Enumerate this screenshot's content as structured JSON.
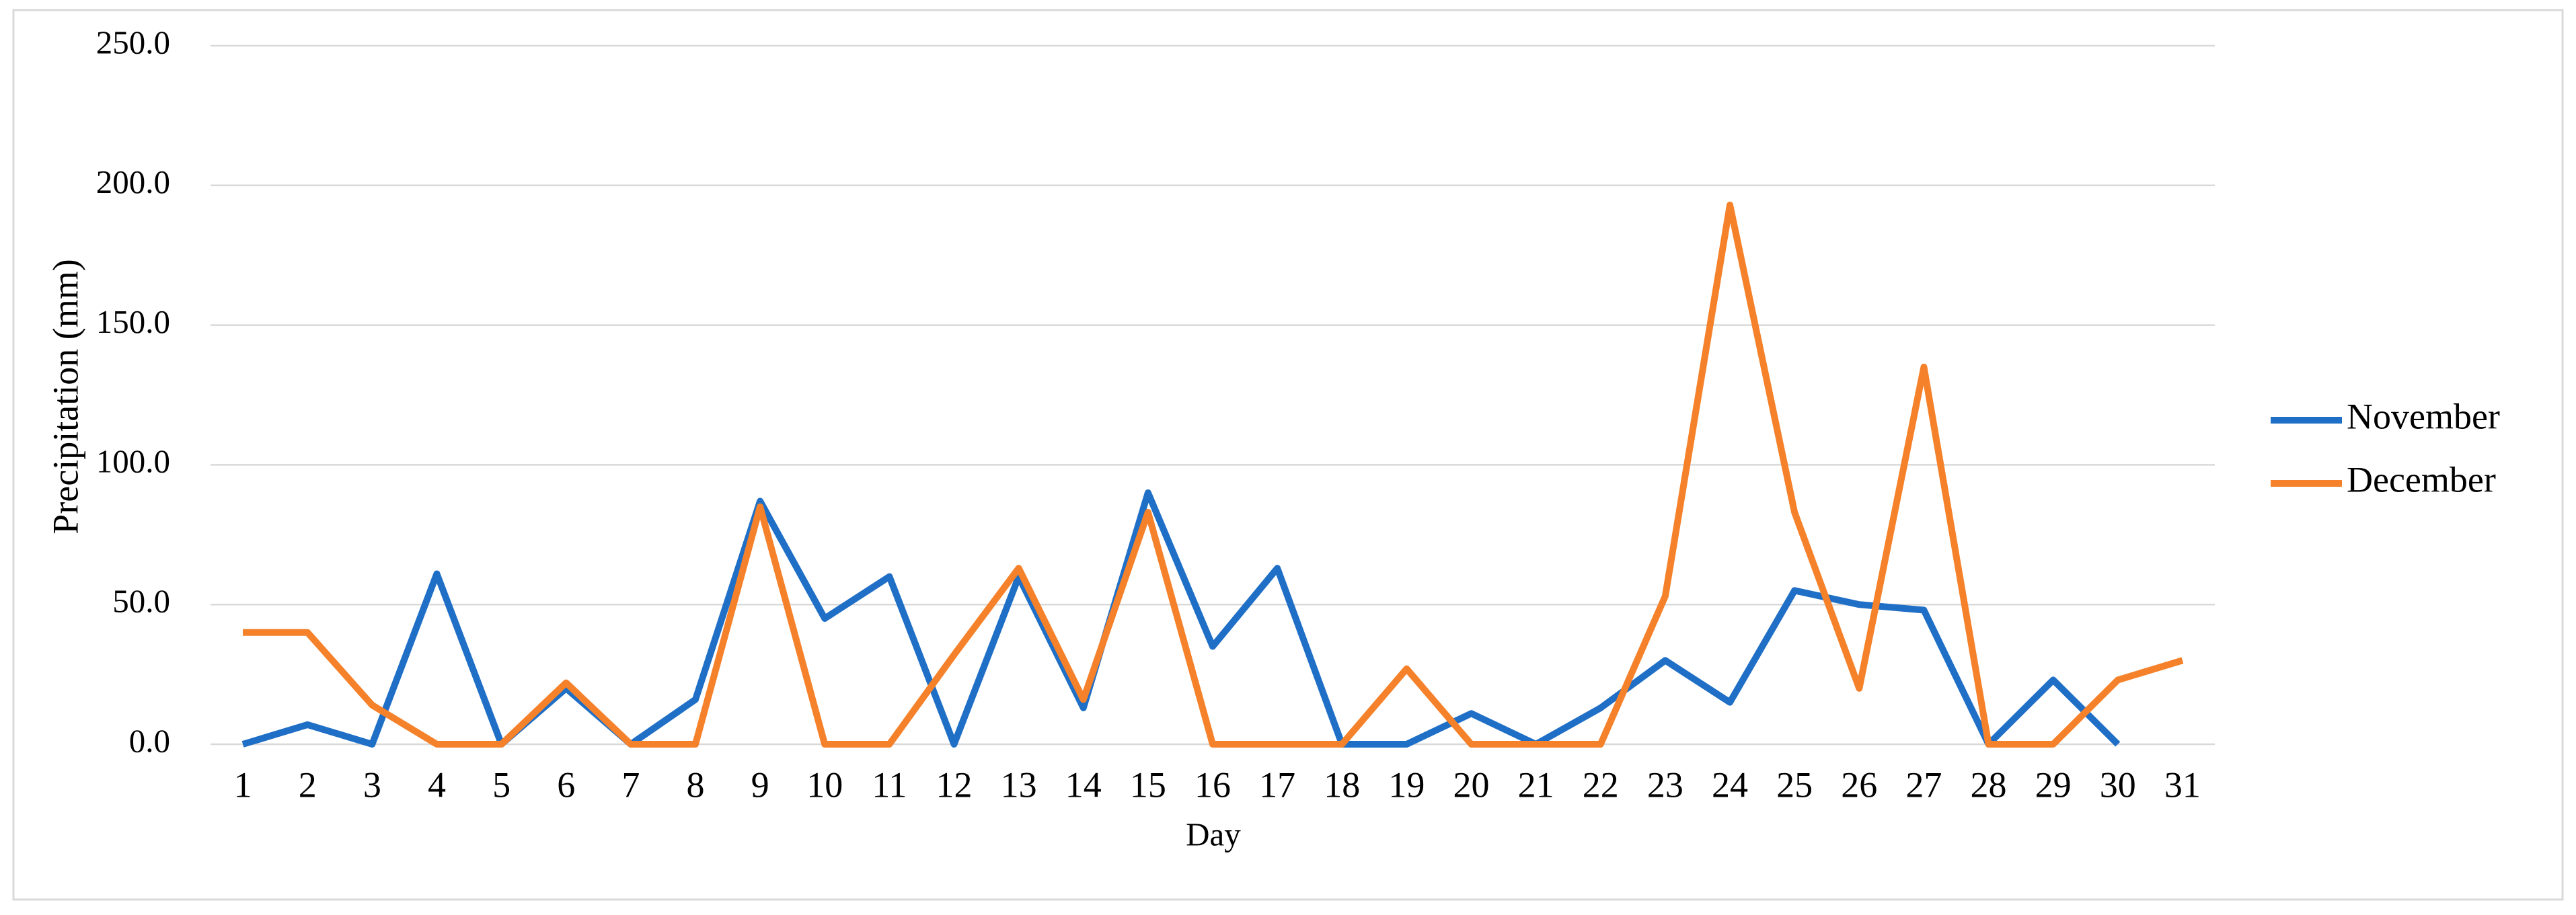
{
  "chart_data": {
    "type": "line",
    "x_label": "Day",
    "y_label": "Precipitation (mm)",
    "categories": [
      "1",
      "2",
      "3",
      "4",
      "5",
      "6",
      "7",
      "8",
      "9",
      "10",
      "11",
      "12",
      "13",
      "14",
      "15",
      "16",
      "17",
      "18",
      "19",
      "20",
      "21",
      "22",
      "23",
      "24",
      "25",
      "26",
      "27",
      "28",
      "29",
      "30",
      "31"
    ],
    "series": [
      {
        "name": "November",
        "color": "#1f6fc6",
        "values": [
          0,
          7,
          0,
          61,
          0,
          20,
          0,
          16,
          87,
          45,
          60,
          0,
          60,
          13,
          90,
          35,
          63,
          0,
          0,
          11,
          0,
          13,
          30,
          15,
          55,
          50,
          48,
          0,
          23,
          0,
          null
        ]
      },
      {
        "name": "December",
        "color": "#f5812a",
        "values": [
          40,
          40,
          14,
          0,
          0,
          22,
          0,
          0,
          85,
          0,
          0,
          32,
          63,
          16,
          83,
          0,
          0,
          0,
          27,
          0,
          0,
          0,
          53,
          193,
          83,
          20,
          135,
          0,
          0,
          23,
          30
        ]
      }
    ],
    "ylim": [
      0,
      250
    ],
    "yticks": [
      {
        "value": 0,
        "label": "0.0"
      },
      {
        "value": 50,
        "label": "50.0"
      },
      {
        "value": 100,
        "label": "100.0"
      },
      {
        "value": 150,
        "label": "150.0"
      },
      {
        "value": 200,
        "label": "200.0"
      },
      {
        "value": 250,
        "label": "250.0"
      }
    ],
    "grid": true,
    "legend": "right"
  }
}
